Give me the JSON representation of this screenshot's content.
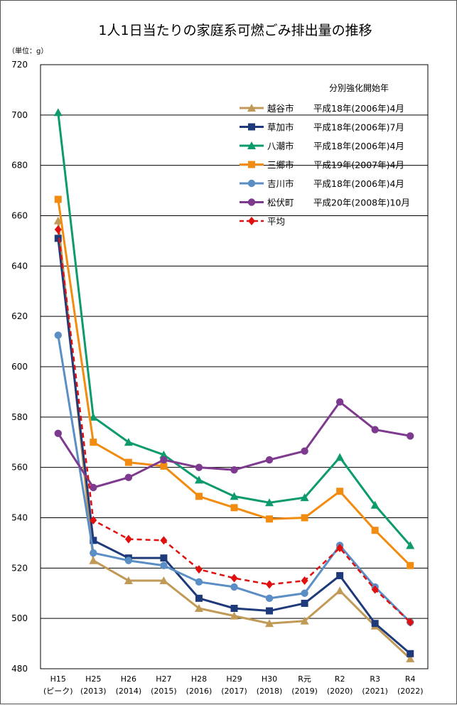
{
  "chart_data": {
    "type": "line",
    "title": "1人1日当たりの家庭系可燃ごみ排出量の推移",
    "unit_label": "（単位：g）",
    "ylim": [
      480,
      720
    ],
    "ytick_step": 20,
    "grid": "horizontal",
    "legend_placement": "top-right",
    "legend_header": "分別強化開始年",
    "categories": [
      {
        "era": "H15",
        "year": "(ピーク)"
      },
      {
        "era": "H25",
        "year": "(2013)"
      },
      {
        "era": "H26",
        "year": "(2014)"
      },
      {
        "era": "H27",
        "year": "(2015)"
      },
      {
        "era": "H28",
        "year": "(2016)"
      },
      {
        "era": "H29",
        "year": "(2017)"
      },
      {
        "era": "H30",
        "year": "(2018)"
      },
      {
        "era": "R元",
        "year": "(2019)"
      },
      {
        "era": "R2",
        "year": "(2020)"
      },
      {
        "era": "R3",
        "year": "(2021)"
      },
      {
        "era": "R4",
        "year": "(2022)"
      }
    ],
    "series": [
      {
        "name": "越谷市",
        "start": "平成18年(2006年)4月",
        "color": "#C09A56",
        "marker": "triangle",
        "dashed": false,
        "values": [
          658,
          523,
          515,
          515,
          504,
          501,
          498,
          499,
          511,
          497,
          484
        ]
      },
      {
        "name": "草加市",
        "start": "平成18年(2006年)7月",
        "color": "#1F3A7A",
        "marker": "square",
        "dashed": false,
        "values": [
          651,
          531,
          524,
          524,
          508,
          504,
          503,
          506,
          517,
          498,
          486
        ]
      },
      {
        "name": "八潮市",
        "start": "平成18年(2006年)4月",
        "color": "#0D9B6E",
        "marker": "triangle",
        "dashed": false,
        "values": [
          701,
          580,
          570,
          565,
          555,
          548.5,
          546,
          548,
          564,
          545,
          529
        ]
      },
      {
        "name": "三郷市",
        "start": "平成19年(2007年)4月",
        "color": "#F28C10",
        "marker": "square",
        "dashed": false,
        "values": [
          666.5,
          570,
          562,
          560.5,
          548.5,
          544,
          539.5,
          540,
          550.5,
          535,
          521
        ]
      },
      {
        "name": "吉川市",
        "start": "平成18年(2006年)4月",
        "color": "#5B8EC5",
        "marker": "circle",
        "dashed": false,
        "values": [
          612.5,
          526,
          523,
          521,
          514.5,
          512.5,
          508,
          510,
          529,
          512.5,
          498.5
        ]
      },
      {
        "name": "松伏町",
        "start": "平成20年(2008年)10月",
        "color": "#7E3A8E",
        "marker": "circle",
        "dashed": false,
        "values": [
          573.5,
          552,
          556,
          563,
          560,
          559,
          563,
          566.5,
          586,
          575,
          572.5
        ]
      },
      {
        "name": "平均",
        "start": "",
        "color": "#E01010",
        "marker": "diamond",
        "dashed": true,
        "values": [
          654.5,
          539,
          531.5,
          531,
          519.5,
          516,
          513.5,
          515,
          528,
          511.5,
          498.5
        ]
      }
    ]
  }
}
